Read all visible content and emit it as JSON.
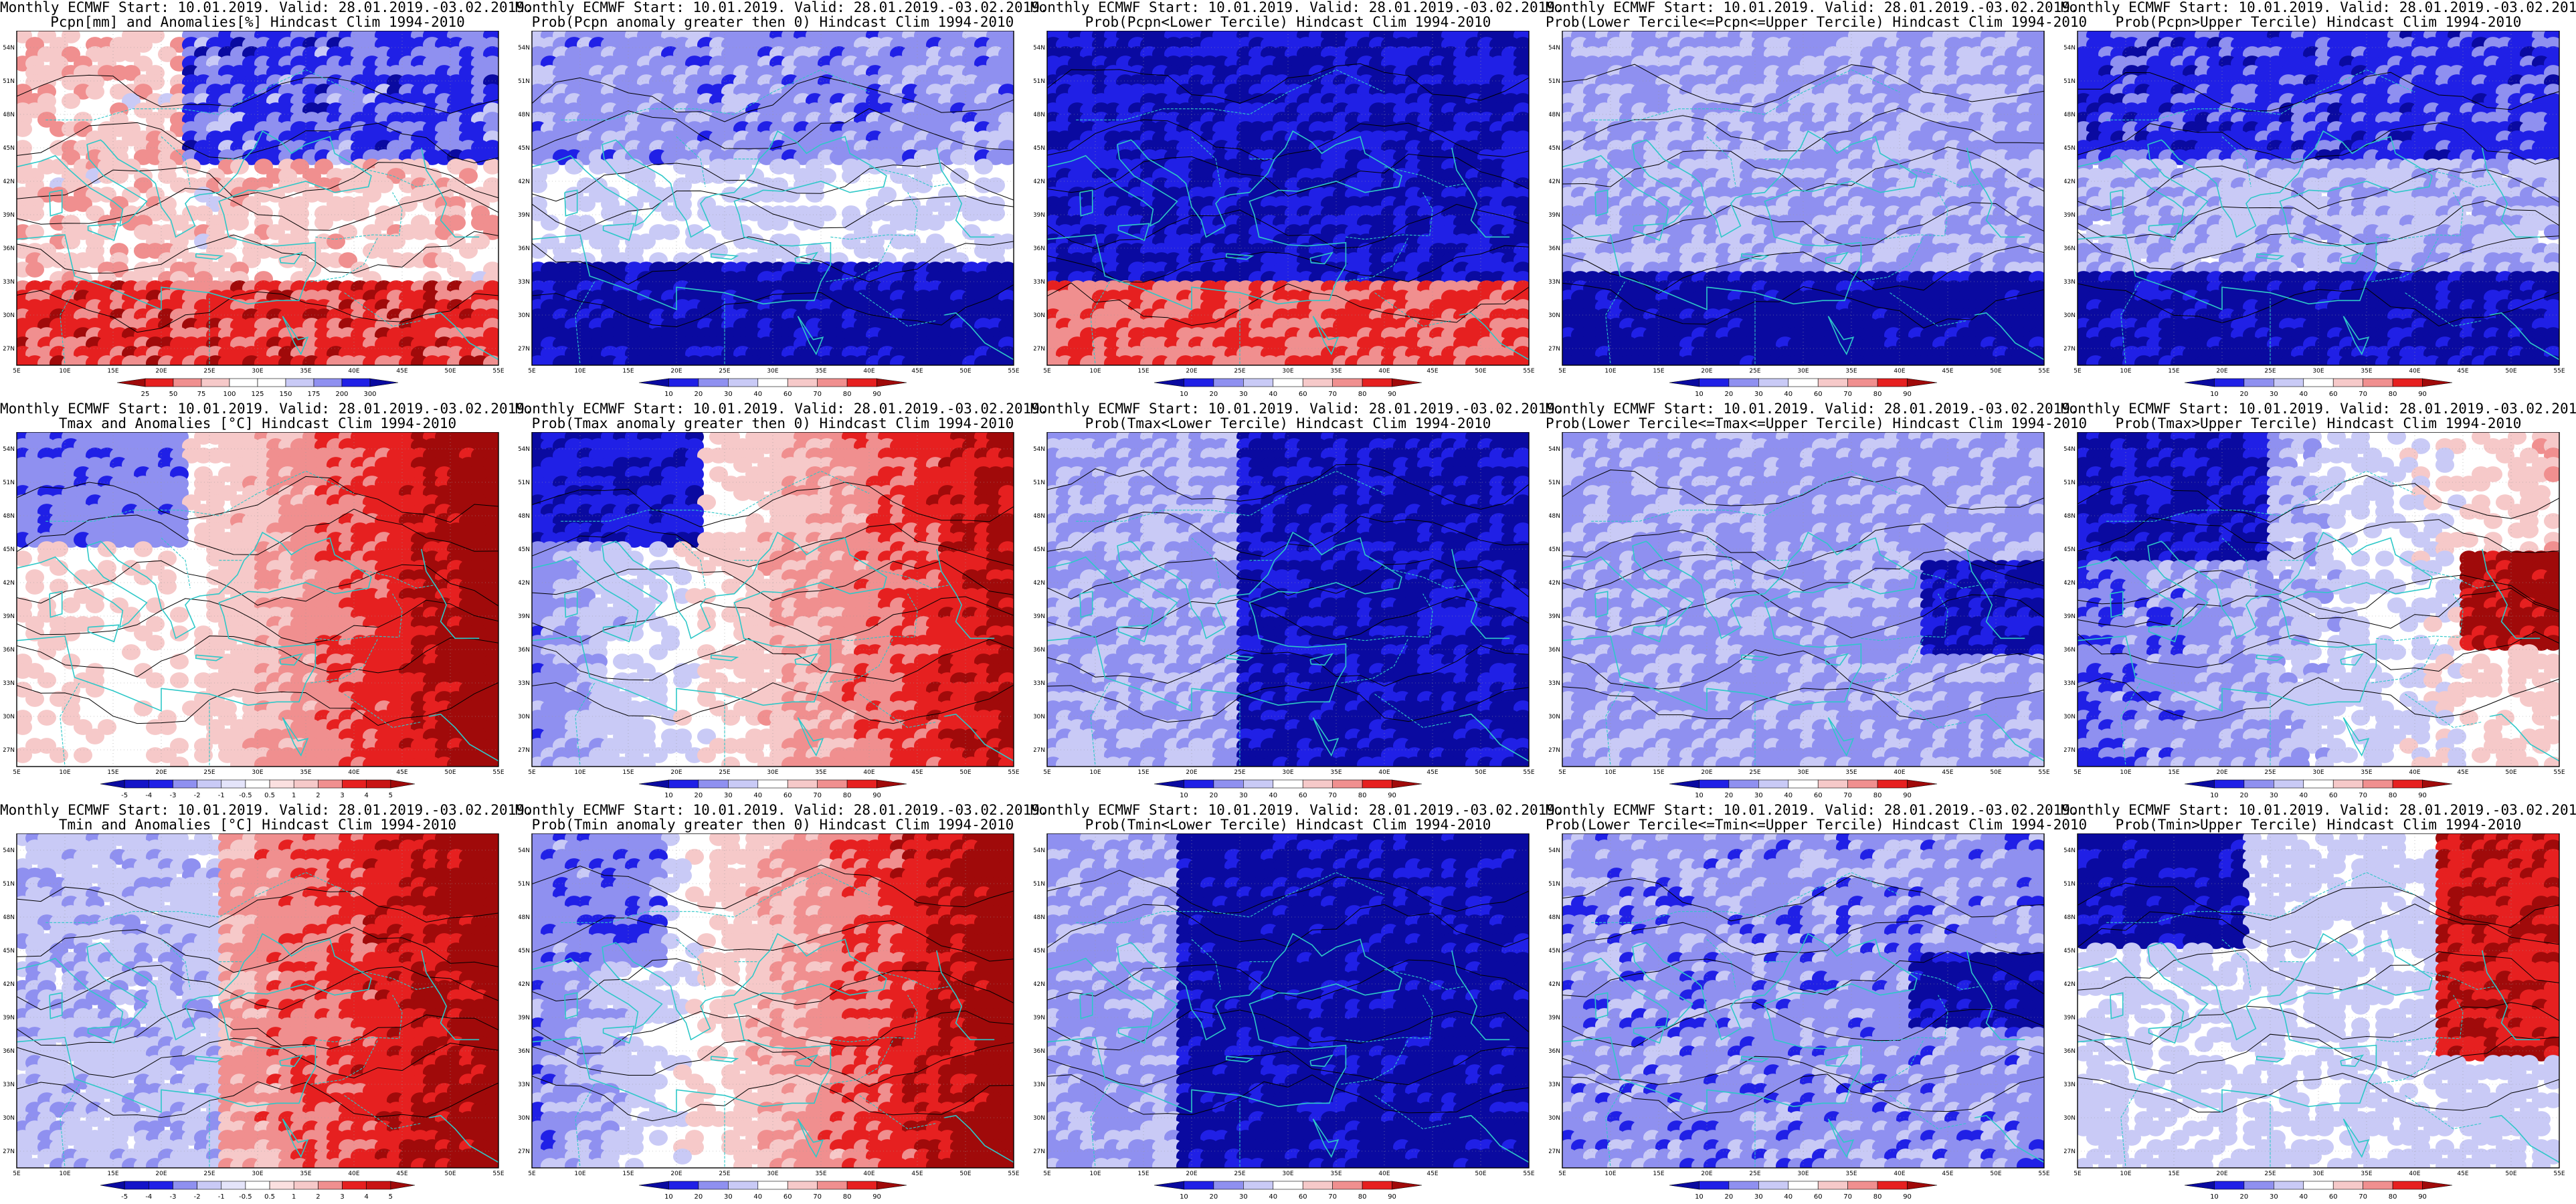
{
  "product": "Monthly ECMWF",
  "start_date": "10.01.2019.",
  "valid_range": "28.01.2019.-03.02.2019.",
  "title_line1": "Monthly ECMWF Start: 10.01.2019. Valid: 28.01.2019.-03.02.2019.",
  "hindcast": "Hindcast Clim 1994-2010",
  "lon_labels": [
    "5E",
    "10E",
    "15E",
    "20E",
    "25E",
    "30E",
    "35E",
    "40E",
    "45E",
    "50E",
    "55E"
  ],
  "lat_labels": [
    "54N",
    "51N",
    "48N",
    "45N",
    "42N",
    "39N",
    "36N",
    "33N",
    "30N",
    "27N"
  ],
  "map_extent": {
    "lon": [
      5,
      55
    ],
    "lat": [
      25.5,
      55.5
    ]
  },
  "colors": {
    "blue_dark": "#0a0aa0",
    "blue_mid": "#2020e6",
    "blue_light": "#8f90f0",
    "blue_pale": "#c9caf6",
    "white": "#ffffff",
    "red_pale": "#f6c9c9",
    "red_light": "#f08f8f",
    "red_mid": "#e62020",
    "red_dark": "#a00a0a",
    "coast": "#2ec8c8",
    "contour": "#000000"
  },
  "legends": {
    "precip_anom": [
      "25",
      "50",
      "75",
      "100",
      "125",
      "150",
      "175",
      "200",
      "300"
    ],
    "prob": [
      "10",
      "20",
      "30",
      "40",
      "60",
      "70",
      "80",
      "90"
    ],
    "temp_anom": [
      "-5",
      "-4",
      "-3",
      "-2",
      "-1",
      "-0.5",
      "0.5",
      "1",
      "2",
      "3",
      "4",
      "5"
    ]
  },
  "panels": [
    {
      "row": 0,
      "col": 0,
      "title2": "Pcpn[mm] and Anomalies[%] Hindcast Clim 1994-2010",
      "legend": "precip_anom",
      "pattern": "precip_anom"
    },
    {
      "row": 0,
      "col": 1,
      "title2": "Prob(Pcpn anomaly greater then 0) Hindcast Clim 1994-2010",
      "legend": "prob",
      "pattern": "precip_pos"
    },
    {
      "row": 0,
      "col": 2,
      "title2": "Prob(Pcpn<Lower Tercile) Hindcast Clim 1994-2010",
      "legend": "prob",
      "pattern": "precip_lower"
    },
    {
      "row": 0,
      "col": 3,
      "title2": "Prob(Lower Tercile<=Pcpn<=Upper Tercile) Hindcast Clim 1994-2010",
      "legend": "prob",
      "pattern": "precip_mid"
    },
    {
      "row": 0,
      "col": 4,
      "title2": "Prob(Pcpn>Upper Tercile) Hindcast Clim 1994-2010",
      "legend": "prob",
      "pattern": "precip_upper"
    },
    {
      "row": 1,
      "col": 0,
      "title2": "Tmax and Anomalies [°C] Hindcast Clim 1994-2010",
      "legend": "temp_anom",
      "pattern": "t_anom"
    },
    {
      "row": 1,
      "col": 1,
      "title2": "Prob(Tmax anomaly greater then 0) Hindcast Clim 1994-2010",
      "legend": "prob",
      "pattern": "t_pos"
    },
    {
      "row": 1,
      "col": 2,
      "title2": "Prob(Tmax<Lower Tercile) Hindcast Clim 1994-2010",
      "legend": "prob",
      "pattern": "t_lower"
    },
    {
      "row": 1,
      "col": 3,
      "title2": "Prob(Lower Tercile<=Tmax<=Upper Tercile) Hindcast Clim 1994-2010",
      "legend": "prob",
      "pattern": "t_mid"
    },
    {
      "row": 1,
      "col": 4,
      "title2": "Prob(Tmax>Upper Tercile) Hindcast Clim 1994-2010",
      "legend": "prob",
      "pattern": "t_upper"
    },
    {
      "row": 2,
      "col": 0,
      "title2": "Tmin and Anomalies [°C] Hindcast Clim 1994-2010",
      "legend": "temp_anom",
      "pattern": "tmin_anom"
    },
    {
      "row": 2,
      "col": 1,
      "title2": "Prob(Tmin anomaly greater then 0) Hindcast Clim 1994-2010",
      "legend": "prob",
      "pattern": "tmin_pos"
    },
    {
      "row": 2,
      "col": 2,
      "title2": "Prob(Tmin<Lower Tercile) Hindcast Clim 1994-2010",
      "legend": "prob",
      "pattern": "tmin_lower"
    },
    {
      "row": 2,
      "col": 3,
      "title2": "Prob(Lower Tercile<=Tmin<=Upper Tercile) Hindcast Clim 1994-2010",
      "legend": "prob",
      "pattern": "tmin_mid"
    },
    {
      "row": 2,
      "col": 4,
      "title2": "Prob(Tmin>Upper Tercile) Hindcast Clim 1994-2010",
      "legend": "prob",
      "pattern": "tmin_upper"
    }
  ]
}
